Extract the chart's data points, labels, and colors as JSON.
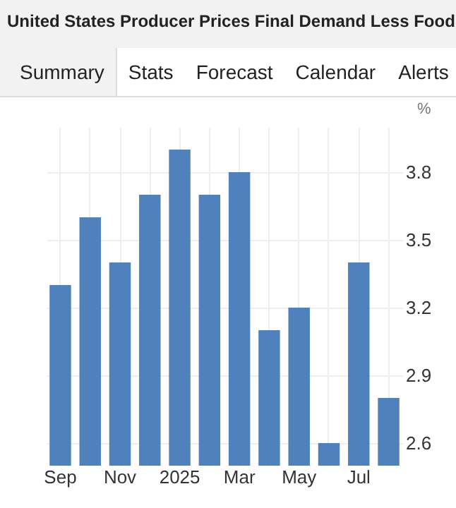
{
  "chart_data": {
    "type": "bar",
    "title": "United States Producer Prices Final Demand Less Food",
    "annotations": [
      "Summary",
      "Stats",
      "Forecast",
      "Calendar",
      "Alerts"
    ],
    "ylabel": "%",
    "categories": [
      "Sep",
      null,
      "Nov",
      null,
      "2025",
      null,
      "Mar",
      null,
      "May",
      null,
      "Jul",
      null
    ],
    "values": [
      3.3,
      3.6,
      3.4,
      3.7,
      3.9,
      3.7,
      3.8,
      3.1,
      3.2,
      2.6,
      3.4,
      2.8
    ],
    "color": "#4f81bd",
    "ylim": [
      2.5,
      4.0
    ],
    "yticks": [
      2.6,
      2.9,
      3.2,
      3.5,
      3.8
    ],
    "grid": true
  }
}
